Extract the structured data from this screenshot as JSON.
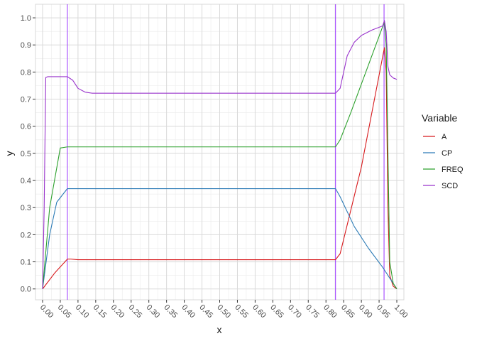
{
  "chart_data": {
    "type": "line",
    "xlabel": "x",
    "ylabel": "y",
    "xlim": [
      -0.02,
      1.02
    ],
    "ylim": [
      -0.04,
      1.05
    ],
    "grid": true,
    "legend_position": "right",
    "x_ticks": [
      "0.00",
      "0.05",
      "0.10",
      "0.15",
      "0.20",
      "0.25",
      "0.30",
      "0.35",
      "0.40",
      "0.45",
      "0.50",
      "0.55",
      "0.60",
      "0.65",
      "0.70",
      "0.75",
      "0.80",
      "0.85",
      "0.90",
      "0.95",
      "1.00"
    ],
    "y_ticks": [
      "0.0",
      "0.1",
      "0.2",
      "0.3",
      "0.4",
      "0.5",
      "0.6",
      "0.7",
      "0.8",
      "0.9",
      "1.0"
    ],
    "legend": {
      "title": "Variable",
      "entries": [
        "A",
        "CP",
        "FREQ",
        "SCD"
      ]
    },
    "vlines": [
      {
        "x": 0.07,
        "color": "#9933ff"
      },
      {
        "x": 0.827,
        "color": "#9933ff"
      },
      {
        "x": 0.964,
        "color": "#9933ff"
      }
    ],
    "series": [
      {
        "name": "A",
        "color": "#d7191c",
        "points": [
          [
            0.0,
            0.0
          ],
          [
            0.035,
            0.06
          ],
          [
            0.07,
            0.11
          ],
          [
            0.08,
            0.11
          ],
          [
            0.1,
            0.108
          ],
          [
            0.5,
            0.108
          ],
          [
            0.827,
            0.108
          ],
          [
            0.84,
            0.13
          ],
          [
            0.9,
            0.45
          ],
          [
            0.965,
            0.89
          ],
          [
            0.97,
            0.8
          ],
          [
            0.975,
            0.3
          ],
          [
            0.98,
            0.05
          ],
          [
            0.99,
            0.01
          ],
          [
            1.0,
            0.0
          ]
        ]
      },
      {
        "name": "CP",
        "color": "#2c7bb6",
        "points": [
          [
            0.0,
            0.0
          ],
          [
            0.02,
            0.2
          ],
          [
            0.04,
            0.32
          ],
          [
            0.07,
            0.37
          ],
          [
            0.5,
            0.37
          ],
          [
            0.827,
            0.37
          ],
          [
            0.84,
            0.34
          ],
          [
            0.88,
            0.23
          ],
          [
            0.92,
            0.15
          ],
          [
            0.96,
            0.08
          ],
          [
            0.97,
            0.06
          ],
          [
            0.98,
            0.04
          ],
          [
            1.0,
            0.0
          ]
        ]
      },
      {
        "name": "FREQ",
        "color": "#2ca02c",
        "points": [
          [
            0.0,
            0.0
          ],
          [
            0.02,
            0.3
          ],
          [
            0.05,
            0.52
          ],
          [
            0.07,
            0.524
          ],
          [
            0.5,
            0.524
          ],
          [
            0.827,
            0.524
          ],
          [
            0.84,
            0.55
          ],
          [
            0.87,
            0.65
          ],
          [
            0.965,
            0.985
          ],
          [
            0.97,
            0.9
          ],
          [
            0.975,
            0.5
          ],
          [
            0.98,
            0.1
          ],
          [
            0.99,
            0.02
          ],
          [
            1.0,
            0.0
          ]
        ]
      },
      {
        "name": "SCD",
        "color": "#9933cc",
        "points": [
          [
            0.0,
            0.0
          ],
          [
            0.0045,
            0.3
          ],
          [
            0.009,
            0.78
          ],
          [
            0.015,
            0.783
          ],
          [
            0.07,
            0.783
          ],
          [
            0.085,
            0.77
          ],
          [
            0.1,
            0.74
          ],
          [
            0.12,
            0.726
          ],
          [
            0.14,
            0.722
          ],
          [
            0.5,
            0.722
          ],
          [
            0.827,
            0.722
          ],
          [
            0.84,
            0.74
          ],
          [
            0.85,
            0.8
          ],
          [
            0.86,
            0.86
          ],
          [
            0.88,
            0.91
          ],
          [
            0.9,
            0.935
          ],
          [
            0.93,
            0.955
          ],
          [
            0.96,
            0.97
          ],
          [
            0.965,
            0.99
          ],
          [
            0.97,
            0.95
          ],
          [
            0.975,
            0.82
          ],
          [
            0.98,
            0.79
          ],
          [
            0.99,
            0.778
          ],
          [
            1.0,
            0.773
          ]
        ]
      }
    ]
  }
}
